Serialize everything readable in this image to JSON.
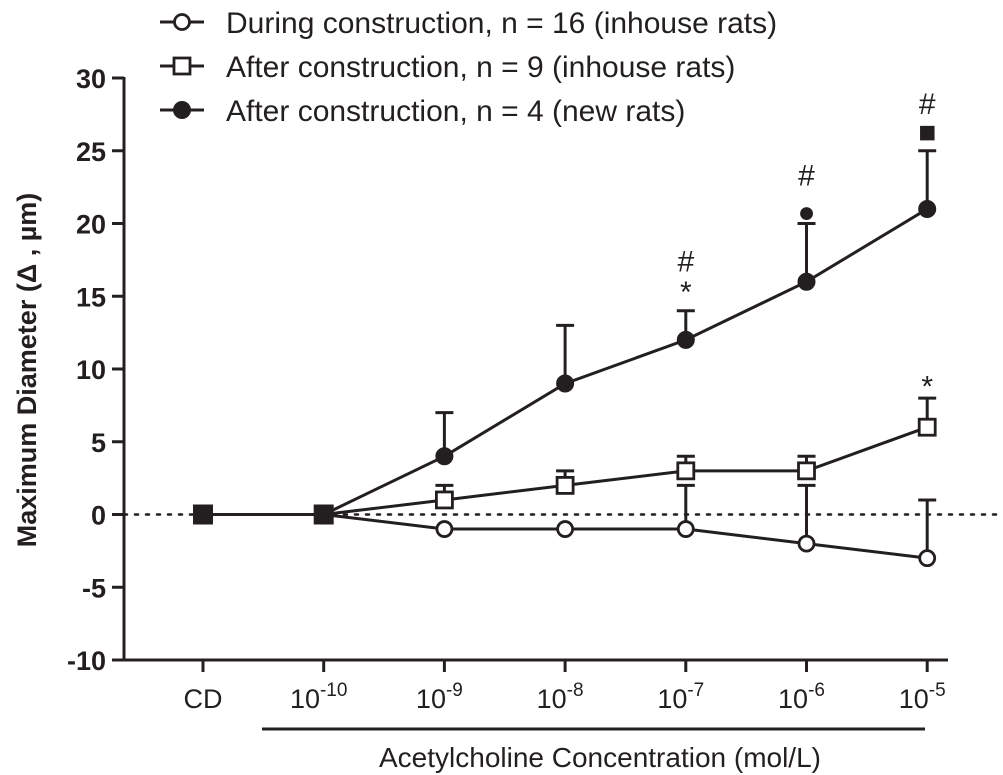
{
  "chart_data": {
    "type": "line",
    "categories": [
      "CD",
      "10",
      "10",
      "10",
      "10",
      "10",
      "10"
    ],
    "category_exponents": [
      "",
      "-10",
      "-9",
      "-8",
      "-7",
      "-6",
      "-5"
    ],
    "ylabel": "Maximum Diameter (Δ , µm)",
    "xlabel": "Acetylcholine Concentration (mol/L)",
    "ylim": [
      -10,
      30
    ],
    "yticks": [
      "-10",
      "-5",
      "0",
      "5",
      "10",
      "15",
      "20",
      "25",
      "30"
    ],
    "grid": false,
    "zero_line": "dotted",
    "legend_position": "top-left",
    "series": [
      {
        "name": "During construction,  n = 16  (inhouse rats)",
        "marker": "open-circle",
        "values": [
          0,
          0,
          -1,
          -1,
          -1,
          -2,
          -3
        ],
        "error_up": [
          0,
          0,
          0,
          0,
          3,
          4,
          4
        ]
      },
      {
        "name": "After construction,  n = 9  (inhouse rats)",
        "marker": "open-square",
        "values": [
          0,
          0,
          1,
          2,
          3,
          3,
          6
        ],
        "error_up": [
          0,
          0,
          1,
          1,
          1,
          1,
          2
        ]
      },
      {
        "name": "After construction,  n = 4  (new rats)",
        "marker": "filled-circle",
        "values": [
          0,
          0,
          4,
          9,
          12,
          16,
          21
        ],
        "error_up": [
          0,
          0,
          3,
          4,
          2,
          4,
          4
        ]
      }
    ],
    "annotations": [
      {
        "text": "#",
        "category": 4,
        "y": 17.4
      },
      {
        "text": "*",
        "category": 4,
        "y": 15.3
      },
      {
        "text": "#",
        "category": 5,
        "y": 23.3
      },
      {
        "text": "●",
        "category": 5,
        "y": 20.8
      },
      {
        "text": "#",
        "category": 6,
        "y": 28.2
      },
      {
        "text": "■",
        "category": 6,
        "y": 26.3
      },
      {
        "text": "*",
        "category": 6,
        "y": 8.8
      }
    ]
  }
}
